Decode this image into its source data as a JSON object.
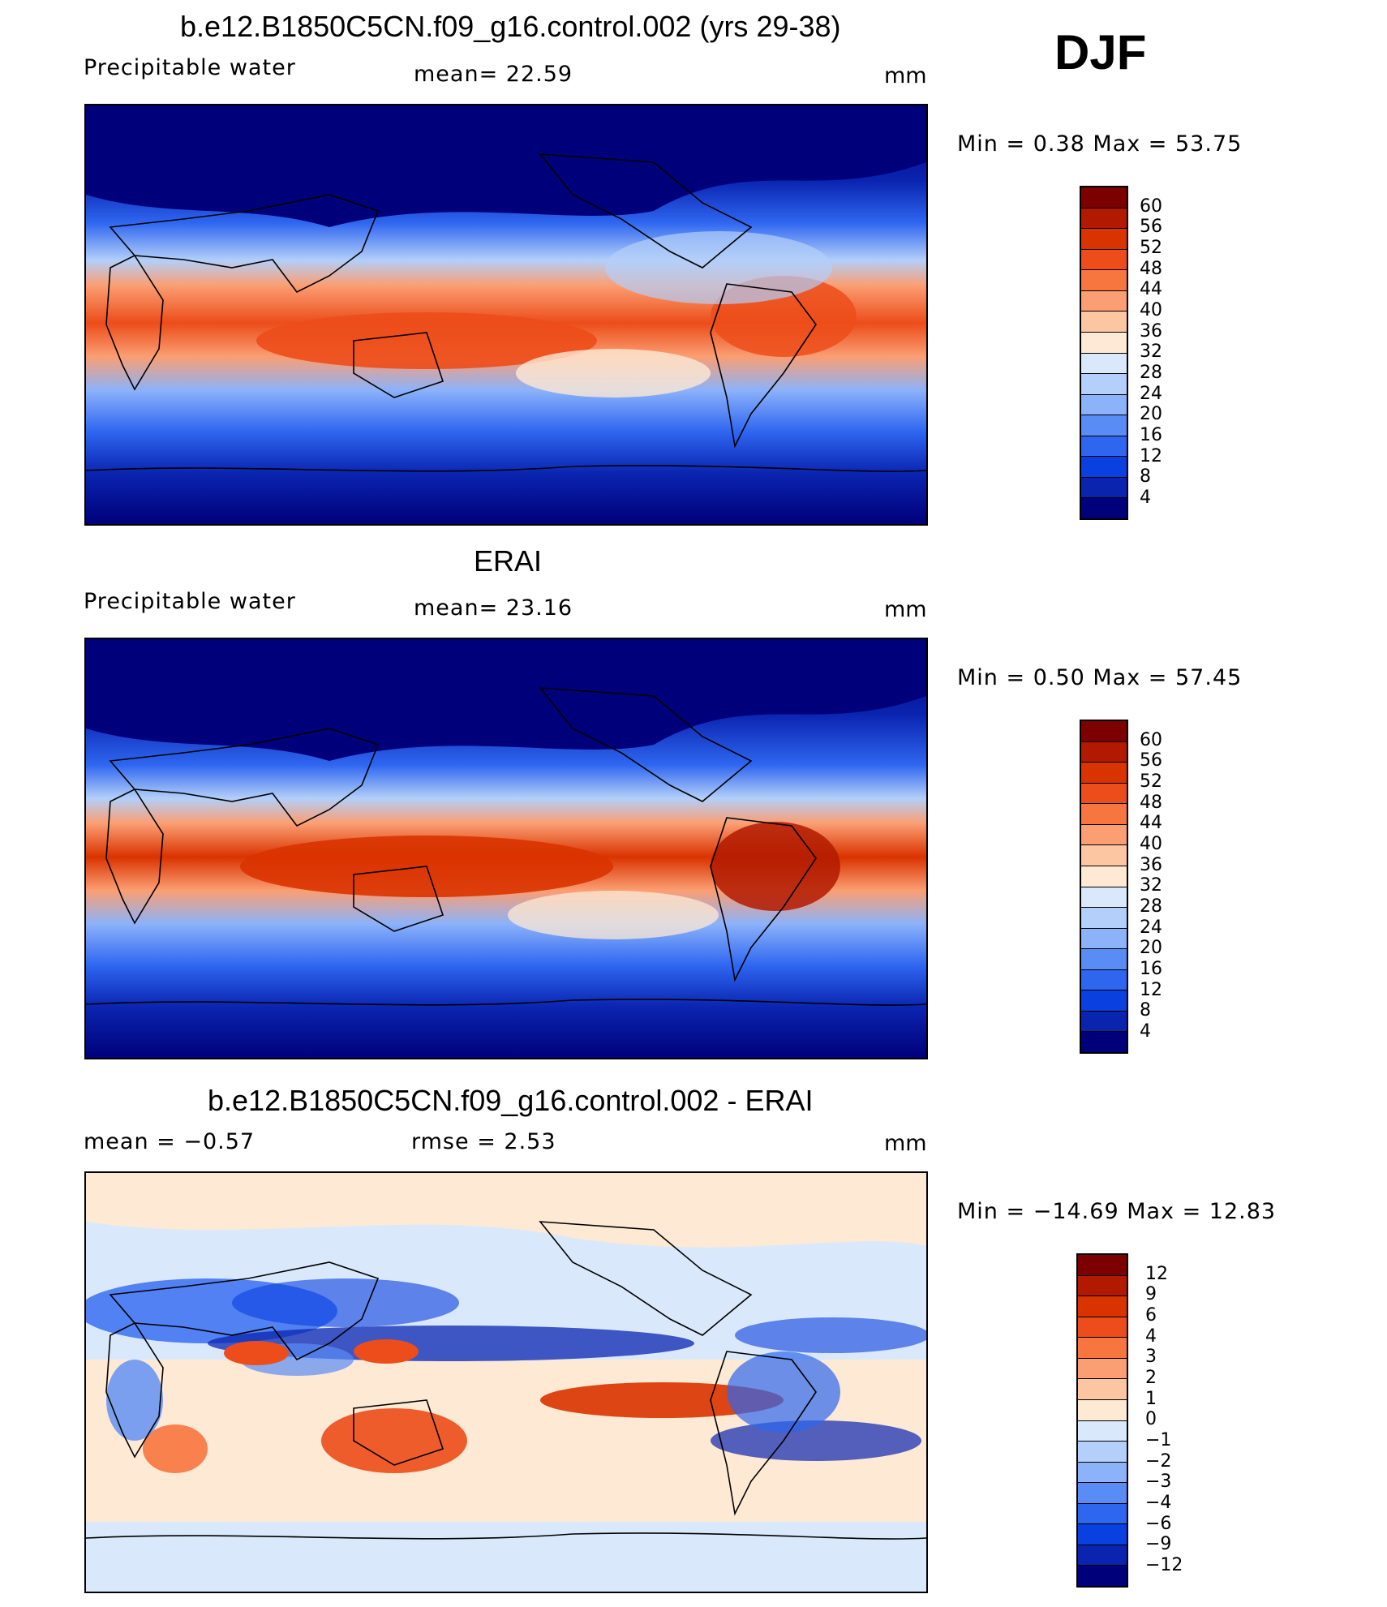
{
  "season": "DJF",
  "panels": [
    {
      "title": "b.e12.B1850C5CN.f09_g16.control.002 (yrs 29-38)",
      "variable": "Precipitable  water",
      "stat_text": "mean=   22.59",
      "units": "mm",
      "minmax": "Min  =    0.38  Max  =   53.75",
      "colorbar_labels": [
        "60",
        "56",
        "52",
        "48",
        "44",
        "40",
        "36",
        "32",
        "28",
        "24",
        "20",
        "16",
        "12",
        "8",
        "4"
      ]
    },
    {
      "title": "ERAI",
      "variable": "Precipitable  water",
      "stat_text": "mean=   23.16",
      "units": "mm",
      "minmax": "Min  =    0.50  Max  =   57.45",
      "colorbar_labels": [
        "60",
        "56",
        "52",
        "48",
        "44",
        "40",
        "36",
        "32",
        "28",
        "24",
        "20",
        "16",
        "12",
        "8",
        "4"
      ]
    },
    {
      "title": "b.e12.B1850C5CN.f09_g16.control.002 - ERAI",
      "mean_text": "mean  =    −0.57",
      "rmse_text": "rmse  =     2.53",
      "units": "mm",
      "minmax": "Min  = −14.69  Max  =    12.83",
      "colorbar_labels": [
        "12",
        "9",
        "6",
        "4",
        "3",
        "2",
        "1",
        "0",
        "−1",
        "−2",
        "−3",
        "−4",
        "−6",
        "−9",
        "−12"
      ]
    }
  ],
  "colors": {
    "pw_scale": [
      "#7d0000",
      "#b21a00",
      "#d93300",
      "#ec4d1a",
      "#f7763f",
      "#fb9e73",
      "#fdc6a3",
      "#fde9d4",
      "#d9e9fb",
      "#b3cffa",
      "#8cb2fa",
      "#5a8cf5",
      "#2e66f0",
      "#0a3fe0",
      "#0a24b0",
      "#00007a"
    ],
    "diff_scale": [
      "#7d0000",
      "#b21a00",
      "#d93300",
      "#ec4d1a",
      "#f7763f",
      "#fb9e73",
      "#fdc6a3",
      "#fde9d4",
      "#d9e9fb",
      "#b3cffa",
      "#8cb2fa",
      "#5a8cf5",
      "#2e66f0",
      "#0a3fe0",
      "#0a24b0",
      "#00007a"
    ]
  }
}
